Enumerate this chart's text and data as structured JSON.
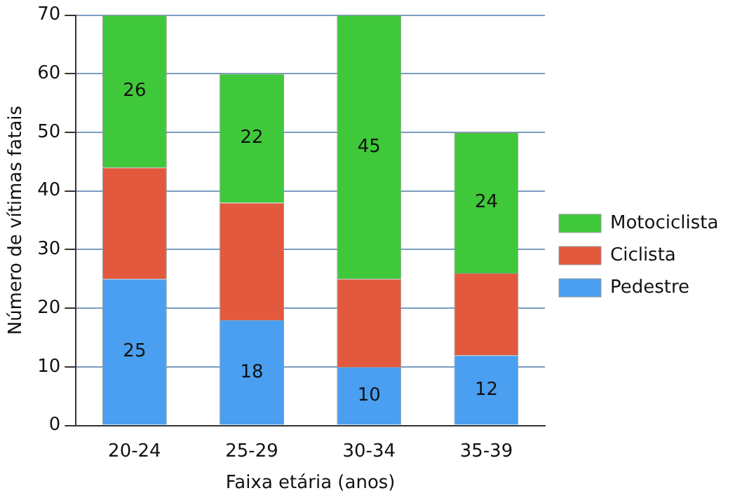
{
  "chart_data": {
    "type": "bar",
    "stacked": true,
    "xlabel": "Faixa etária (anos)",
    "ylabel": "Número de vítimas fatais",
    "categories": [
      "20-24",
      "25-29",
      "30-34",
      "35-39"
    ],
    "series": [
      {
        "name": "Pedestre",
        "color": "#4a9ff0",
        "values": [
          25,
          18,
          10,
          12
        ],
        "value_labels": [
          "25",
          "18",
          "10",
          "12"
        ]
      },
      {
        "name": "Ciclista",
        "color": "#e2593e",
        "values": [
          19,
          20,
          15,
          14
        ]
      },
      {
        "name": "Motociclista",
        "color": "#3fc83a",
        "values": [
          26,
          22,
          45,
          24
        ],
        "value_labels": [
          "26",
          "22",
          "45",
          "24"
        ]
      }
    ],
    "ylim": [
      0,
      70
    ],
    "yticks": [
      0,
      10,
      20,
      30,
      40,
      50,
      60,
      70
    ],
    "grid": "y",
    "legend": "right"
  }
}
